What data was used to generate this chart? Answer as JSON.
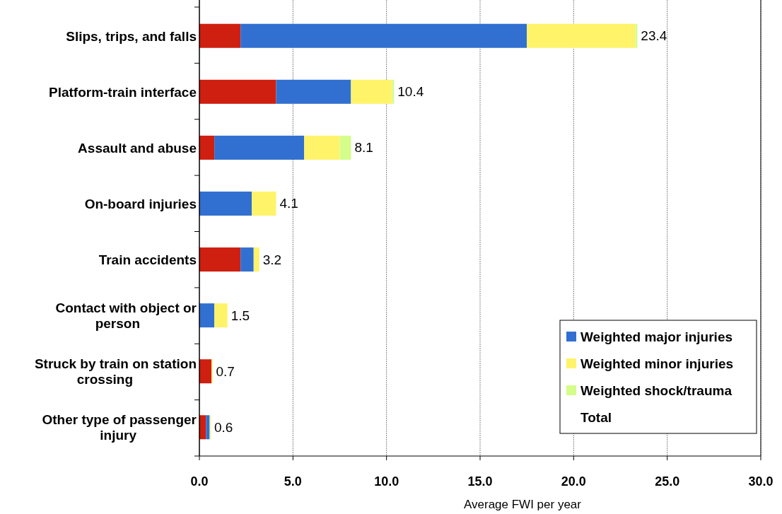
{
  "chart_data": {
    "type": "bar",
    "orientation": "horizontal",
    "stacked": true,
    "categories": [
      "Slips, trips, and falls",
      "Platform-train interface",
      "Assault and abuse",
      "On-board injuries",
      "Train accidents",
      "Contact with object or person",
      "Struck by train on station crossing",
      "Other type of passenger injury"
    ],
    "series": [
      {
        "color": "#cf1f10",
        "values": [
          2.2,
          4.1,
          0.8,
          0,
          2.2,
          0,
          0.65,
          0.35
        ]
      },
      {
        "name": "Weighted major injuries",
        "color": "#3170d0",
        "values": [
          15.3,
          4.0,
          4.8,
          2.8,
          0.7,
          0.8,
          0,
          0.2
        ]
      },
      {
        "name": "Weighted minor injuries",
        "color": "#fff36a",
        "values": [
          5.8,
          2.2,
          1.9,
          1.3,
          0.3,
          0.7,
          0.05,
          0.05
        ]
      },
      {
        "name": "Weighted shock/trauma",
        "color": "#d4fd8a",
        "values": [
          0.1,
          0.1,
          0.6,
          0,
          0,
          0,
          0,
          0
        ]
      },
      {
        "name": "Total",
        "color": null,
        "values": [
          null,
          null,
          null,
          null,
          null,
          null,
          null,
          null
        ]
      }
    ],
    "totals": [
      "23.4",
      "10.4",
      "8.1",
      "4.1",
      "3.2",
      "1.5",
      "0.7",
      "0.6"
    ],
    "xlabel": "Average FWI per year",
    "xlim": [
      0,
      30
    ],
    "xticks": [
      {
        "value": 0,
        "label": "0.0"
      },
      {
        "value": 5,
        "label": "5.0"
      },
      {
        "value": 10,
        "label": "10.0"
      },
      {
        "value": 15,
        "label": "15.0"
      },
      {
        "value": 20,
        "label": "20.0"
      },
      {
        "value": 25,
        "label": "25.0"
      },
      {
        "value": 30,
        "label": "30.0"
      }
    ],
    "grid": "x",
    "legend": "bottom right"
  }
}
